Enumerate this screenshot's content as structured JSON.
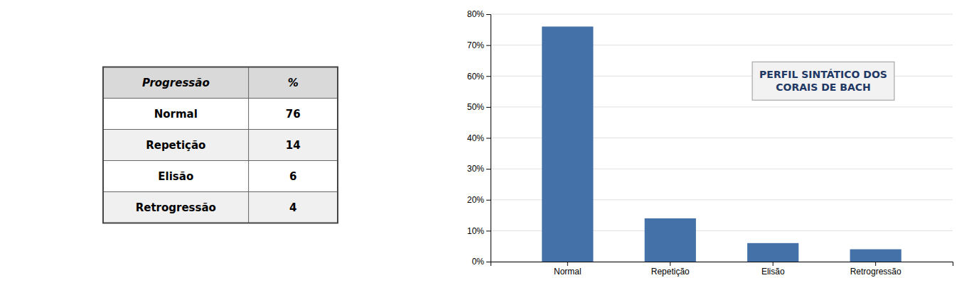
{
  "chart_data": [
    {
      "type": "table",
      "columns": [
        "Progressão",
        "%"
      ],
      "rows": [
        [
          "Normal",
          76
        ],
        [
          "Repetição",
          14
        ],
        [
          "Elisão",
          6
        ],
        [
          "Retrogressão",
          4
        ]
      ]
    },
    {
      "type": "bar",
      "annotation": [
        "PERFIL SINTÁTICO DOS",
        "CORAIS DE BACH"
      ],
      "categories": [
        "Normal",
        "Repetição",
        "Elisão",
        "Retrogressão"
      ],
      "values": [
        76,
        14,
        6,
        4
      ],
      "color": "#4472a8",
      "ylim": [
        0,
        80
      ],
      "yticks": [
        {
          "value": 0,
          "label": "0%"
        },
        {
          "value": 10,
          "label": "10%"
        },
        {
          "value": 20,
          "label": "20%"
        },
        {
          "value": 30,
          "label": "30%"
        },
        {
          "value": 40,
          "label": "40%"
        },
        {
          "value": 50,
          "label": "50%"
        },
        {
          "value": 60,
          "label": "60%"
        },
        {
          "value": 70,
          "label": "70%"
        },
        {
          "value": 80,
          "label": "80%"
        }
      ],
      "grid": true
    }
  ]
}
